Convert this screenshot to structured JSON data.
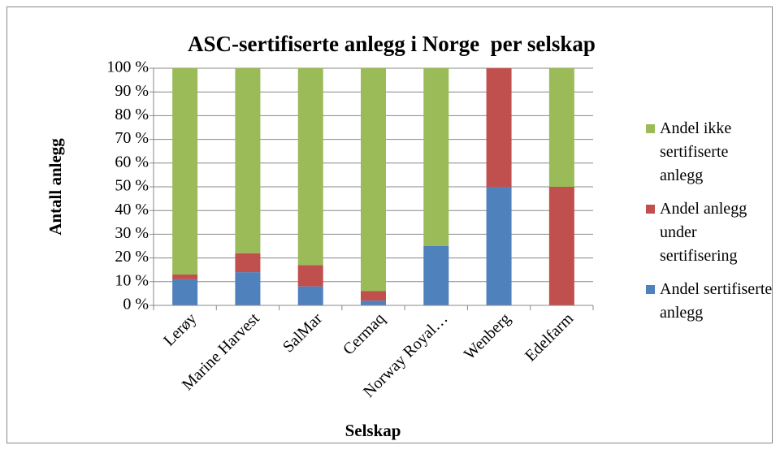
{
  "chart_data": {
    "type": "stacked_bar",
    "title": "ASC-sertifiserte anlegg i Norge  per selskap",
    "y_label": "Antall anlegg",
    "x_label": "Selskap",
    "categories": [
      "Lerøy",
      "Marine Harvest",
      "SalMar",
      "Cermaq",
      "Norway Royal…",
      "Wenberg",
      "Edelfarm"
    ],
    "series": [
      {
        "name": "Andel sertifiserte anlegg",
        "color": "#4f81bd",
        "values": [
          11,
          14,
          8,
          2,
          25,
          50,
          0
        ]
      },
      {
        "name": "Andel anlegg under sertifisering",
        "color": "#c0504d",
        "values": [
          2,
          8,
          9,
          4,
          0,
          50,
          50
        ]
      },
      {
        "name": "Andel ikke sertifiserte anlegg",
        "color": "#9bbb59",
        "values": [
          87,
          78,
          83,
          94,
          75,
          0,
          50
        ]
      }
    ],
    "ylim": [
      0,
      100
    ],
    "yticks": [
      {
        "value": 0,
        "label": "0 %"
      },
      {
        "value": 10,
        "label": "10 %"
      },
      {
        "value": 20,
        "label": "20 %"
      },
      {
        "value": 30,
        "label": "30 %"
      },
      {
        "value": 40,
        "label": "40 %"
      },
      {
        "value": 50,
        "label": "50 %"
      },
      {
        "value": 60,
        "label": "60 %"
      },
      {
        "value": 70,
        "label": "70 %"
      },
      {
        "value": 80,
        "label": "80 %"
      },
      {
        "value": 90,
        "label": "90 %"
      },
      {
        "value": 100,
        "label": "100 %"
      }
    ],
    "grid": true,
    "legend": "right"
  }
}
